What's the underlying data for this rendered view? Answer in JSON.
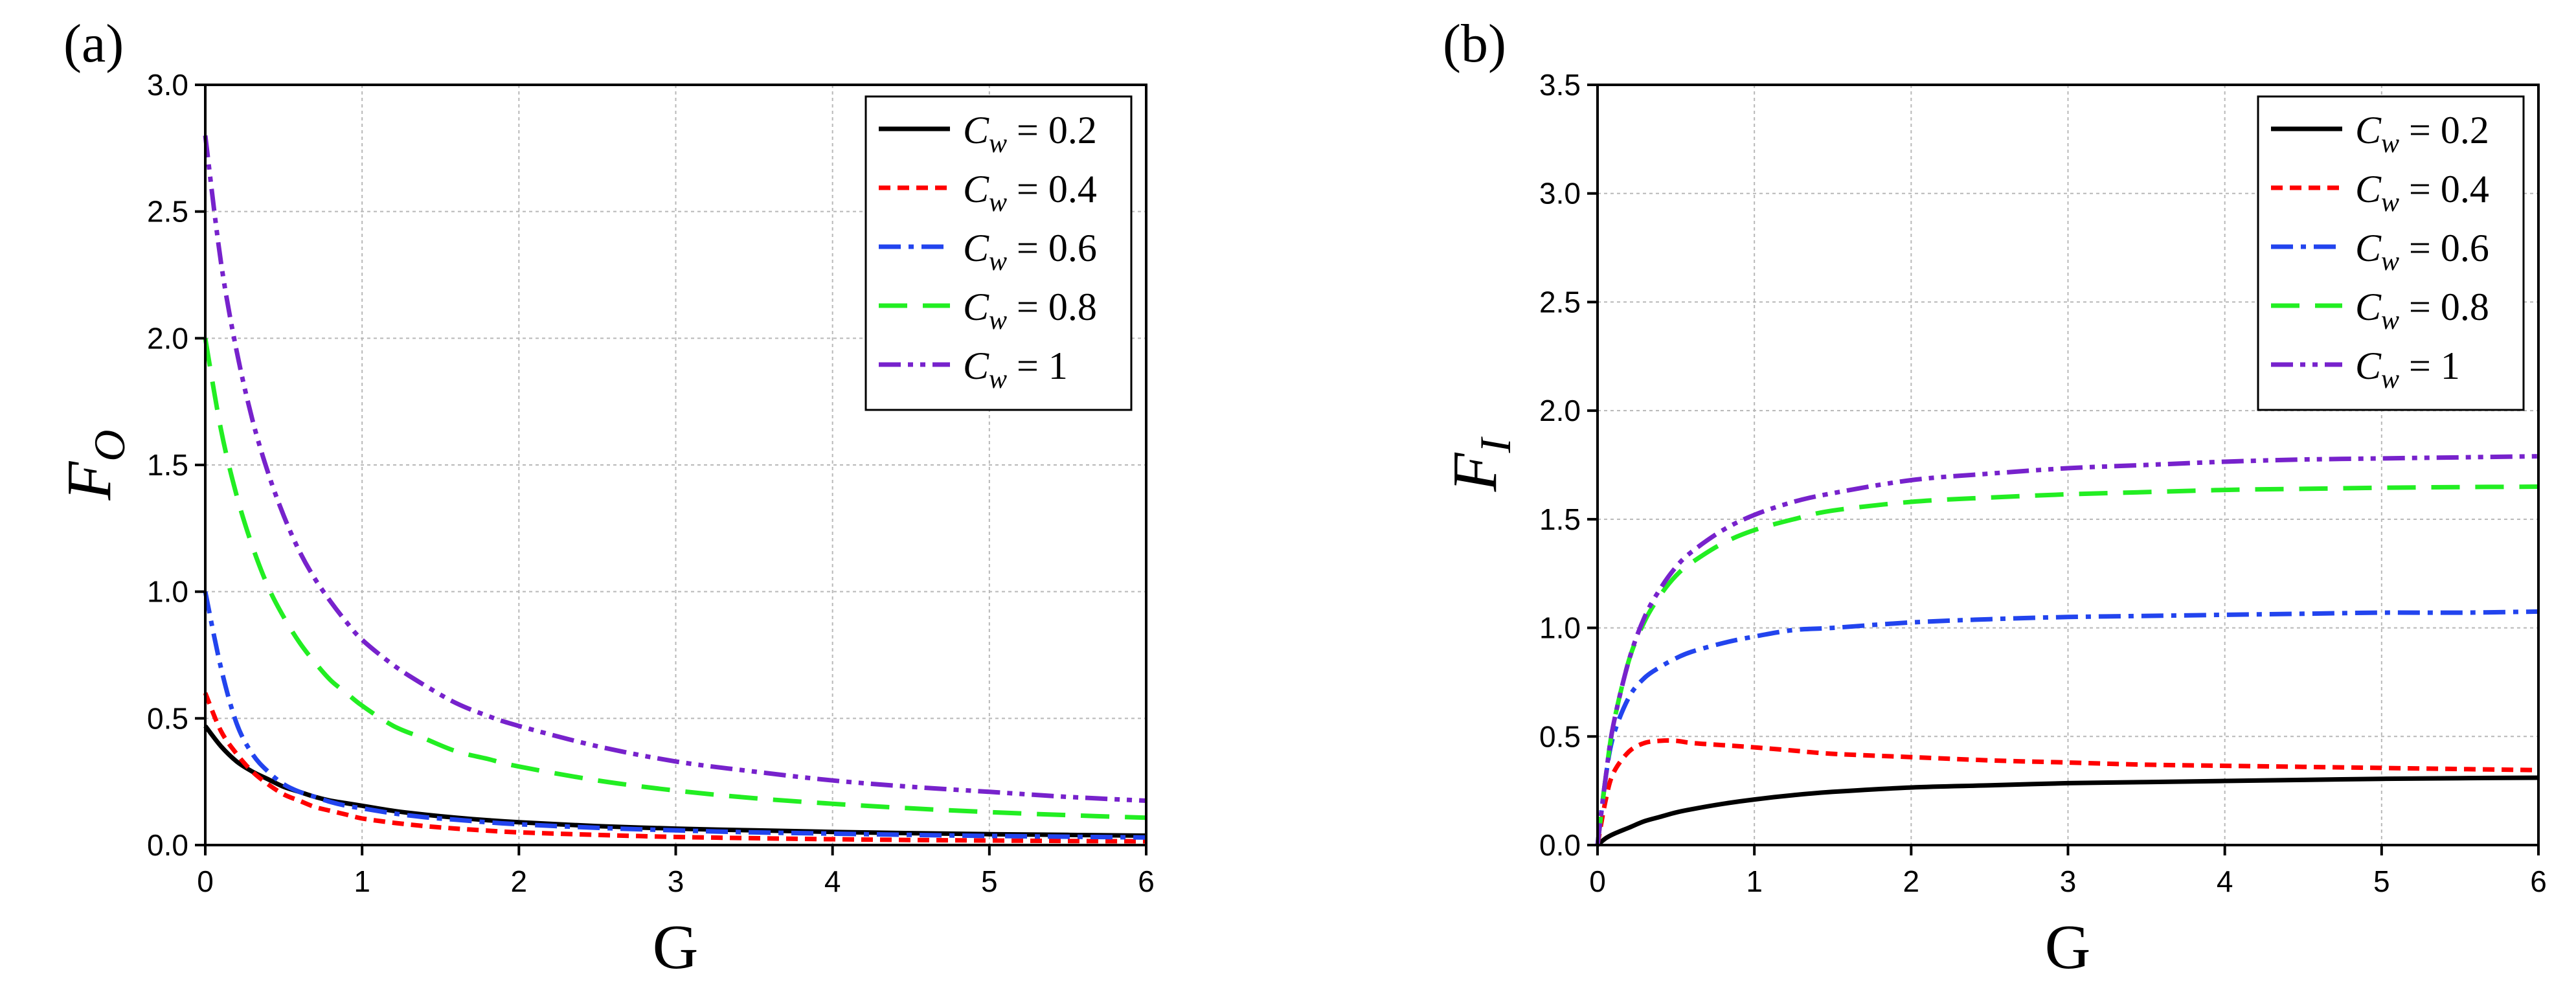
{
  "chart_data": [
    {
      "panel_label": "(a)",
      "type": "line",
      "title": "",
      "xlabel": "G",
      "ylabel_main": "F",
      "ylabel_sub": "O",
      "xlim": [
        0,
        6
      ],
      "ylim": [
        0,
        3.0
      ],
      "xticks": [
        "0",
        "1",
        "2",
        "3",
        "4",
        "5",
        "6"
      ],
      "yticks": [
        "0.0",
        "0.5",
        "1.0",
        "1.5",
        "2.0",
        "2.5",
        "3.0"
      ],
      "grid": true,
      "legend_position": "top-right",
      "x": [
        0,
        0.1,
        0.2,
        0.3,
        0.4,
        0.5,
        0.6,
        0.7,
        0.8,
        0.9,
        1,
        1.2,
        1.4,
        1.6,
        1.8,
        2,
        2.5,
        3,
        3.5,
        4,
        4.5,
        5,
        5.5,
        6
      ],
      "series": [
        {
          "name": "Cw = 0.2",
          "legend_value": "0.2",
          "color": "#000000",
          "style": "solid",
          "values": [
            0.47,
            0.39,
            0.33,
            0.29,
            0.26,
            0.23,
            0.21,
            0.19,
            0.175,
            0.165,
            0.155,
            0.135,
            0.12,
            0.108,
            0.098,
            0.09,
            0.075,
            0.065,
            0.058,
            0.052,
            0.047,
            0.043,
            0.04,
            0.037
          ]
        },
        {
          "name": "Cw = 0.4",
          "legend_value": "0.4",
          "color": "#ff0000",
          "style": "short-dash",
          "values": [
            0.6,
            0.45,
            0.36,
            0.29,
            0.24,
            0.2,
            0.175,
            0.15,
            0.135,
            0.12,
            0.105,
            0.088,
            0.075,
            0.065,
            0.057,
            0.05,
            0.04,
            0.032,
            0.027,
            0.023,
            0.02,
            0.018,
            0.016,
            0.015
          ]
        },
        {
          "name": "Cw = 0.6",
          "legend_value": "0.6",
          "color": "#2244ee",
          "style": "dash-dot",
          "values": [
            1.0,
            0.7,
            0.48,
            0.36,
            0.29,
            0.24,
            0.21,
            0.19,
            0.17,
            0.155,
            0.145,
            0.125,
            0.11,
            0.1,
            0.09,
            0.082,
            0.068,
            0.058,
            0.05,
            0.045,
            0.04,
            0.036,
            0.033,
            0.03
          ]
        },
        {
          "name": "Cw = 0.8",
          "legend_value": "0.8",
          "color": "#22ee22",
          "style": "long-dash",
          "values": [
            2.0,
            1.64,
            1.38,
            1.18,
            1.02,
            0.9,
            0.8,
            0.72,
            0.65,
            0.6,
            0.55,
            0.47,
            0.42,
            0.37,
            0.34,
            0.31,
            0.255,
            0.215,
            0.185,
            0.163,
            0.145,
            0.13,
            0.118,
            0.108
          ]
        },
        {
          "name": "Cw = 1",
          "legend_value": "1",
          "color": "#7722cc",
          "style": "dash-dot-dot",
          "values": [
            2.8,
            2.3,
            1.95,
            1.68,
            1.47,
            1.3,
            1.16,
            1.05,
            0.96,
            0.88,
            0.81,
            0.71,
            0.63,
            0.56,
            0.51,
            0.47,
            0.39,
            0.33,
            0.29,
            0.255,
            0.23,
            0.21,
            0.19,
            0.175
          ]
        }
      ]
    },
    {
      "panel_label": "(b)",
      "type": "line",
      "title": "",
      "xlabel": "G",
      "ylabel_main": "F",
      "ylabel_sub": "I",
      "xlim": [
        0,
        6
      ],
      "ylim": [
        0,
        3.5
      ],
      "xticks": [
        "0",
        "1",
        "2",
        "3",
        "4",
        "5",
        "6"
      ],
      "yticks": [
        "0.0",
        "0.5",
        "1.0",
        "1.5",
        "2.0",
        "2.5",
        "3.0",
        "3.5"
      ],
      "grid": true,
      "legend_position": "top-right",
      "x": [
        0,
        0.05,
        0.1,
        0.2,
        0.3,
        0.4,
        0.5,
        0.6,
        0.8,
        1,
        1.25,
        1.5,
        2,
        2.5,
        3,
        3.5,
        4,
        4.5,
        5,
        5.5,
        6
      ],
      "series": [
        {
          "name": "Cw = 0.2",
          "legend_value": "0.2",
          "color": "#000000",
          "style": "solid",
          "values": [
            0,
            0.03,
            0.05,
            0.08,
            0.11,
            0.13,
            0.15,
            0.165,
            0.19,
            0.21,
            0.23,
            0.245,
            0.265,
            0.275,
            0.285,
            0.29,
            0.295,
            0.3,
            0.305,
            0.308,
            0.31
          ]
        },
        {
          "name": "Cw = 0.4",
          "legend_value": "0.4",
          "color": "#ff0000",
          "style": "short-dash",
          "values": [
            0,
            0.2,
            0.33,
            0.43,
            0.47,
            0.48,
            0.48,
            0.47,
            0.46,
            0.45,
            0.435,
            0.42,
            0.405,
            0.39,
            0.38,
            0.37,
            0.365,
            0.36,
            0.355,
            0.35,
            0.345
          ]
        },
        {
          "name": "Cw = 0.6",
          "legend_value": "0.6",
          "color": "#2244ee",
          "style": "dash-dot",
          "values": [
            0,
            0.3,
            0.5,
            0.68,
            0.77,
            0.82,
            0.86,
            0.89,
            0.93,
            0.96,
            0.99,
            1.0,
            1.025,
            1.04,
            1.05,
            1.055,
            1.06,
            1.065,
            1.07,
            1.07,
            1.075
          ]
        },
        {
          "name": "Cw = 0.8",
          "legend_value": "0.8",
          "color": "#22ee22",
          "style": "long-dash",
          "values": [
            0,
            0.3,
            0.55,
            0.85,
            1.03,
            1.15,
            1.24,
            1.3,
            1.39,
            1.45,
            1.5,
            1.54,
            1.58,
            1.6,
            1.615,
            1.625,
            1.635,
            1.64,
            1.645,
            1.648,
            1.65
          ]
        },
        {
          "name": "Cw = 1",
          "legend_value": "1",
          "color": "#7722cc",
          "style": "dash-dot-dot",
          "values": [
            0,
            0.3,
            0.55,
            0.85,
            1.05,
            1.18,
            1.28,
            1.35,
            1.45,
            1.52,
            1.58,
            1.62,
            1.68,
            1.71,
            1.735,
            1.75,
            1.765,
            1.775,
            1.78,
            1.785,
            1.79
          ]
        }
      ]
    }
  ]
}
